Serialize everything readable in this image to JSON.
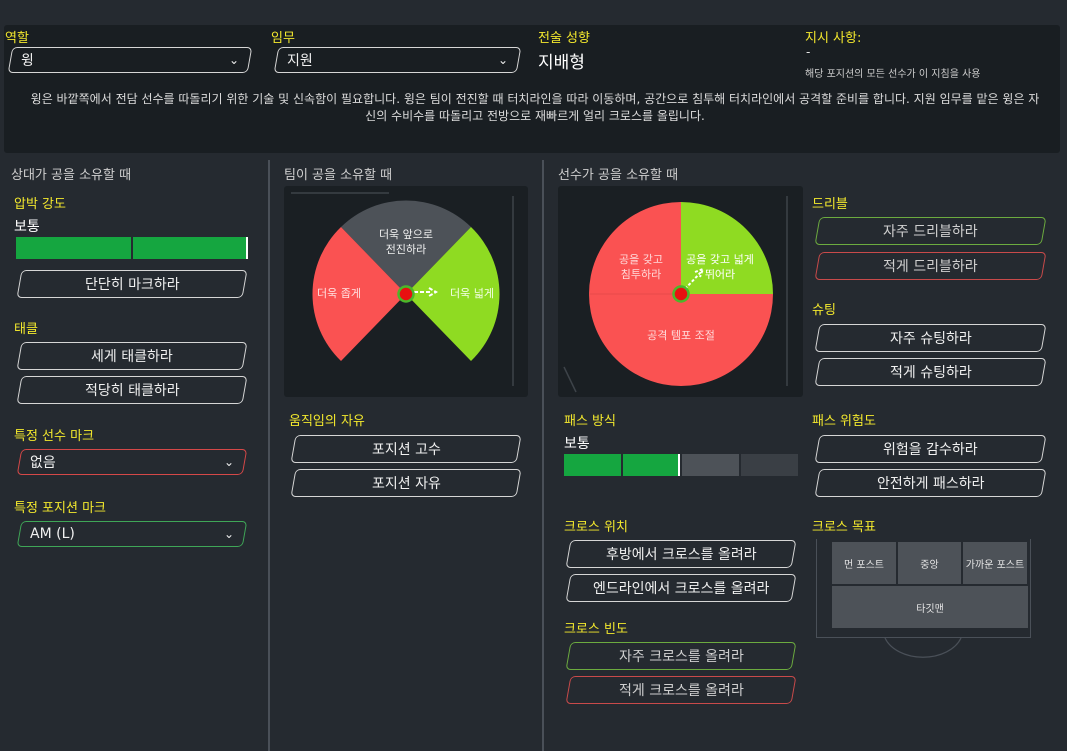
{
  "header": {
    "role_label": "역할",
    "role_value": "윙",
    "duty_label": "임무",
    "duty_value": "지원",
    "mentality_label": "전술 성향",
    "mentality_value": "지배형",
    "instructions_label": "지시 사항:",
    "instructions_dash": "-",
    "instructions_note": "해당 포지션의 모든 선수가 이 지침을 사용",
    "description": "윙은 바깥쪽에서 전담 선수를 따돌리기 위한 기술 및 신속함이 필요합니다. 윙은 팀이 전진할 때 터치라인을 따라 이동하며, 공간으로 침투해 터치라인에서 공격할 준비를 합니다. 지원 임무를 맡은 윙은 자신의 수비수를 따돌리고 전방으로 재빠르게 얼리 크로스를 올립니다."
  },
  "col1": {
    "title": "상대가 공을 소유할 때",
    "pressing_label": "압박 강도",
    "pressing_value": "보통",
    "pressing_level": 2,
    "pressing_levels": 2,
    "mark_tightly": "단단히 마크하라",
    "tackling_label": "태클",
    "tackle_harder": "세게 태클하라",
    "tackle_moderate": "적당히 태클하라",
    "mark_player_label": "특정 선수 마크",
    "mark_player_value": "없음",
    "mark_position_label": "특정 포지션 마크",
    "mark_position_value": "AM (L)"
  },
  "col2": {
    "title": "팀이 공을 소유할 때",
    "wheel_top": "더욱 앞으로 전진하라",
    "wheel_left": "더욱 좁게",
    "wheel_right": "더욱 넓게",
    "freedom_label": "움직임의 자유",
    "hold_position": "포지션 고수",
    "roam": "포지션 자유"
  },
  "col3": {
    "title": "선수가 공을 소유할 때",
    "pie_left": "공을 갖고 침투하라",
    "pie_right": "공을 갖고 넓게 뛰어라",
    "pie_bottom": "공격 템포 조절",
    "passing_label": "패스 방식",
    "passing_value": "보통",
    "passing_level": 2,
    "passing_levels": 4,
    "cross_from_label": "크로스 위치",
    "cross_deep": "후방에서 크로스를 올려라",
    "cross_byline": "엔드라인에서 크로스를 올려라",
    "cross_freq_label": "크로스 빈도",
    "cross_more": "자주 크로스를 올려라",
    "cross_less": "적게 크로스를 올려라"
  },
  "col4": {
    "dribble_label": "드리블",
    "dribble_more": "자주 드리블하라",
    "dribble_less": "적게 드리블하라",
    "shoot_label": "슈팅",
    "shoot_more": "자주 슈팅하라",
    "shoot_less": "적게 슈팅하라",
    "risk_label": "패스 위험도",
    "risk_more": "위험을 감수하라",
    "risk_less": "안전하게 패스하라",
    "target_label": "크로스 목표",
    "target_far": "먼 포스트",
    "target_centre": "중앙",
    "target_near": "가까운 포스트",
    "target_man": "타깃맨"
  },
  "colors": {
    "accent": "#f3e82d",
    "green": "#15a640",
    "lime": "#8fdb22",
    "red": "#fa5252",
    "grey": "#4d5258"
  }
}
